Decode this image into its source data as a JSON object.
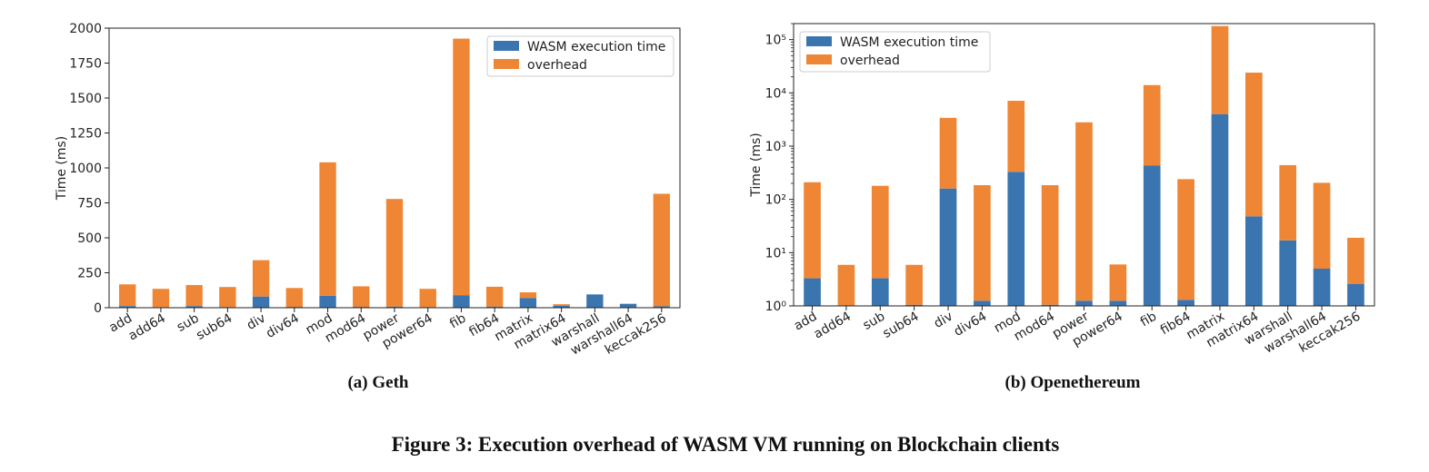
{
  "figure_caption": "Figure 3: Execution overhead of WASM VM running on Blockchain clients",
  "colors": {
    "wasm": "#3b75af",
    "overhead": "#ef8636"
  },
  "chart_data": [
    {
      "type": "bar",
      "stacked": true,
      "caption": "(a) Geth",
      "ylabel": "Time (ms)",
      "yscale": "linear",
      "ylim": [
        0,
        2000
      ],
      "yticks": [
        0,
        250,
        500,
        750,
        1000,
        1250,
        1500,
        1750,
        2000
      ],
      "ytick_labels": [
        "0",
        "250",
        "500",
        "750",
        "1000",
        "1250",
        "1500",
        "1750",
        "2000"
      ],
      "legend_position": "top-right",
      "grid": false,
      "categories": [
        "add",
        "add64",
        "sub",
        "sub64",
        "div",
        "div64",
        "mod",
        "mod64",
        "power",
        "power64",
        "fib",
        "fib64",
        "matrix",
        "matrix64",
        "warshall",
        "warshall64",
        "keccak256"
      ],
      "series": [
        {
          "name": "WASM execution time",
          "values": [
            12,
            5,
            12,
            5,
            80,
            6,
            85,
            6,
            8,
            5,
            90,
            8,
            70,
            15,
            95,
            28,
            10
          ]
        },
        {
          "name": "overhead",
          "values": [
            155,
            130,
            150,
            143,
            260,
            135,
            955,
            147,
            770,
            130,
            1835,
            142,
            40,
            10,
            0,
            0,
            805
          ]
        }
      ]
    },
    {
      "type": "bar",
      "stacked": true,
      "caption": "(b) Openethereum",
      "ylabel": "Time (ms)",
      "yscale": "log",
      "ylim": [
        1,
        200000
      ],
      "yticks": [
        1,
        10,
        100,
        1000,
        10000,
        100000
      ],
      "ytick_labels": [
        "10⁰",
        "10¹",
        "10²",
        "10³",
        "10⁴",
        "10⁵"
      ],
      "legend_position": "top-left",
      "grid": false,
      "categories": [
        "add",
        "add64",
        "sub",
        "sub64",
        "div",
        "div64",
        "mod",
        "mod64",
        "power",
        "power64",
        "fib",
        "fib64",
        "matrix",
        "matrix64",
        "warshall",
        "warshall64",
        "keccak256"
      ],
      "series": [
        {
          "name": "WASM execution time",
          "values": [
            3.3,
            1.0,
            3.3,
            1.05,
            160,
            1.25,
            330,
            1.05,
            1.25,
            1.25,
            430,
            1.3,
            4000,
            48,
            17,
            5,
            2.6
          ]
        },
        {
          "name": "overhead",
          "values": [
            206.7,
            4.9,
            176.7,
            4.85,
            3240,
            183.75,
            6770,
            183.95,
            2798.75,
            4.75,
            13570,
            238.7,
            176000,
            23952,
            423,
            200,
            16.4
          ]
        }
      ]
    }
  ]
}
